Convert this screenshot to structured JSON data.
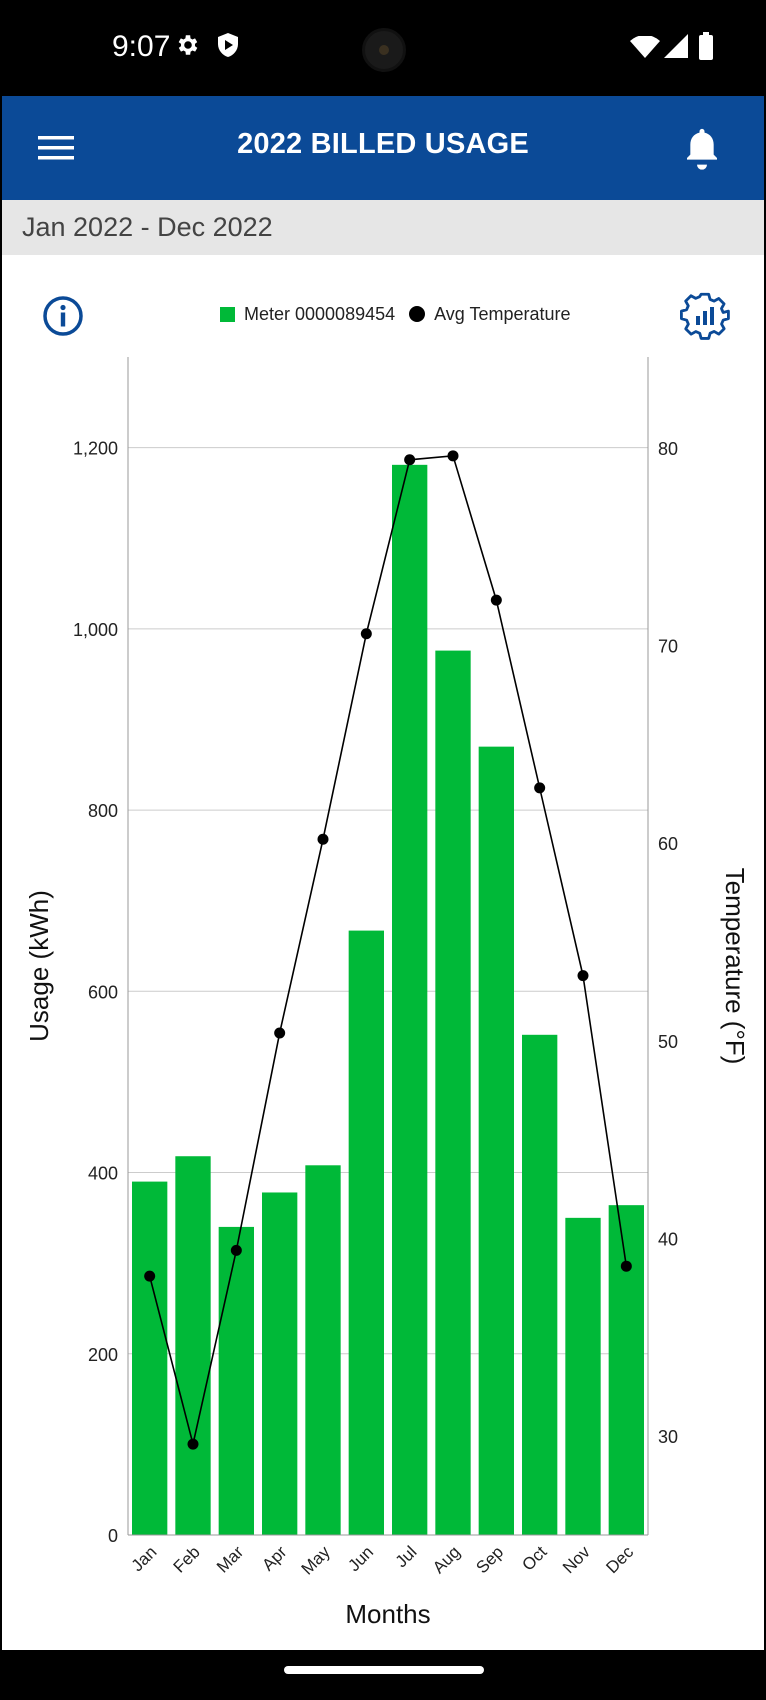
{
  "status_bar": {
    "time": "9:07",
    "icons": [
      "settings-gear-icon",
      "shield-icon",
      "wifi-icon",
      "cellular-signal-icon",
      "battery-icon"
    ]
  },
  "app_bar": {
    "title": "2022 BILLED USAGE",
    "menu_icon": "hamburger-menu-icon",
    "notification_icon": "bell-icon"
  },
  "date_range": "Jan 2022 - Dec 2022",
  "toolbar": {
    "info_icon": "info-circle-icon",
    "chart_settings_icon": "gear-chart-icon"
  },
  "colors": {
    "app_bar": "#0b4a97",
    "bar": "#00b938",
    "line": "#000000",
    "grid": "#cccccc",
    "accent_icon": "#0b4a97"
  },
  "chart_data": {
    "type": "bar",
    "categories": [
      "Jan",
      "Feb",
      "Mar",
      "Apr",
      "May",
      "Jun",
      "Jul",
      "Aug",
      "Sep",
      "Oct",
      "Nov",
      "Dec"
    ],
    "series": [
      {
        "name": "Meter 0000089454",
        "type": "bar",
        "axis": "left",
        "values": [
          390,
          418,
          340,
          378,
          408,
          667,
          1181,
          976,
          870,
          552,
          350,
          364
        ]
      },
      {
        "name": "Avg Temperature",
        "type": "line",
        "axis": "right",
        "values": [
          38.1,
          29.6,
          39.4,
          50.4,
          60.2,
          70.6,
          79.4,
          79.6,
          72.3,
          62.8,
          53.3,
          38.6
        ]
      }
    ],
    "xlabel": "Months",
    "ylabel": "Usage (kWh)",
    "y2label": "Temperature (°F)",
    "ylim": [
      0,
      1300
    ],
    "y2lim": [
      25,
      84.6
    ],
    "yticks": [
      0,
      200,
      400,
      600,
      800,
      1000,
      1200
    ],
    "yticklabels": [
      "0",
      "200",
      "400",
      "600",
      "800",
      "1,000",
      "1,200"
    ],
    "y2ticks": [
      30,
      40,
      50,
      60,
      70,
      80
    ],
    "grid": true,
    "legend": "top-center"
  }
}
